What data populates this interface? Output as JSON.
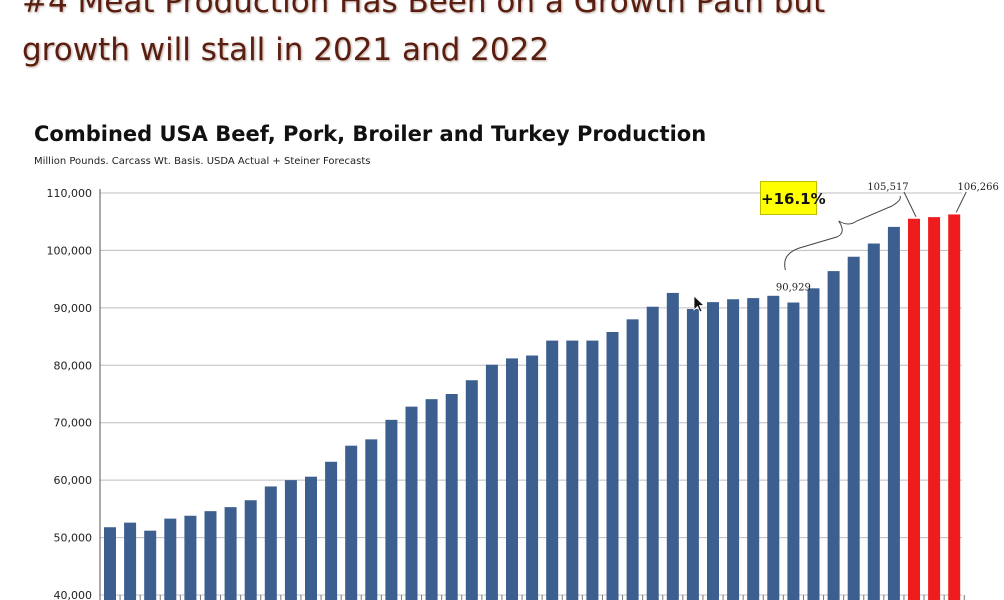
{
  "slide": {
    "title_line1": "#4 Meat Production Has Been on a Growth Path but",
    "title_line2": "growth will stall in 2021 and 2022"
  },
  "chart_data": {
    "type": "bar",
    "title": "Combined USA Beef, Pork, Broiler and Turkey Production",
    "subtitle": "Million Pounds.  Carcass Wt. Basis.  USDA Actual + Steiner Forecasts",
    "ylim": [
      40000,
      110000
    ],
    "yticks": [
      40000,
      50000,
      60000,
      70000,
      80000,
      90000,
      100000,
      110000
    ],
    "grid": true,
    "values": [
      51800,
      52600,
      51200,
      53300,
      53800,
      54600,
      55300,
      56500,
      58900,
      60000,
      60600,
      63200,
      66000,
      67100,
      70500,
      72800,
      74100,
      75000,
      77400,
      80100,
      81200,
      81700,
      84300,
      84300,
      84300,
      85800,
      88000,
      90200,
      92600,
      89800,
      91000,
      91500,
      91700,
      92100,
      90929,
      93400,
      96400,
      98900,
      101200,
      104100,
      105517,
      105800,
      106266
    ],
    "series_colors": {
      "actual": "#3c5f8f",
      "forecast": "#ee1c1c"
    },
    "forecast_start_index": 40,
    "annotations": [
      {
        "label": "90,929",
        "index": 34
      },
      {
        "label": "105,517",
        "index": 40
      },
      {
        "label": "106,266",
        "index": 42
      },
      {
        "label": "+16.1%",
        "from_index": 34,
        "to_index": 40
      }
    ]
  }
}
